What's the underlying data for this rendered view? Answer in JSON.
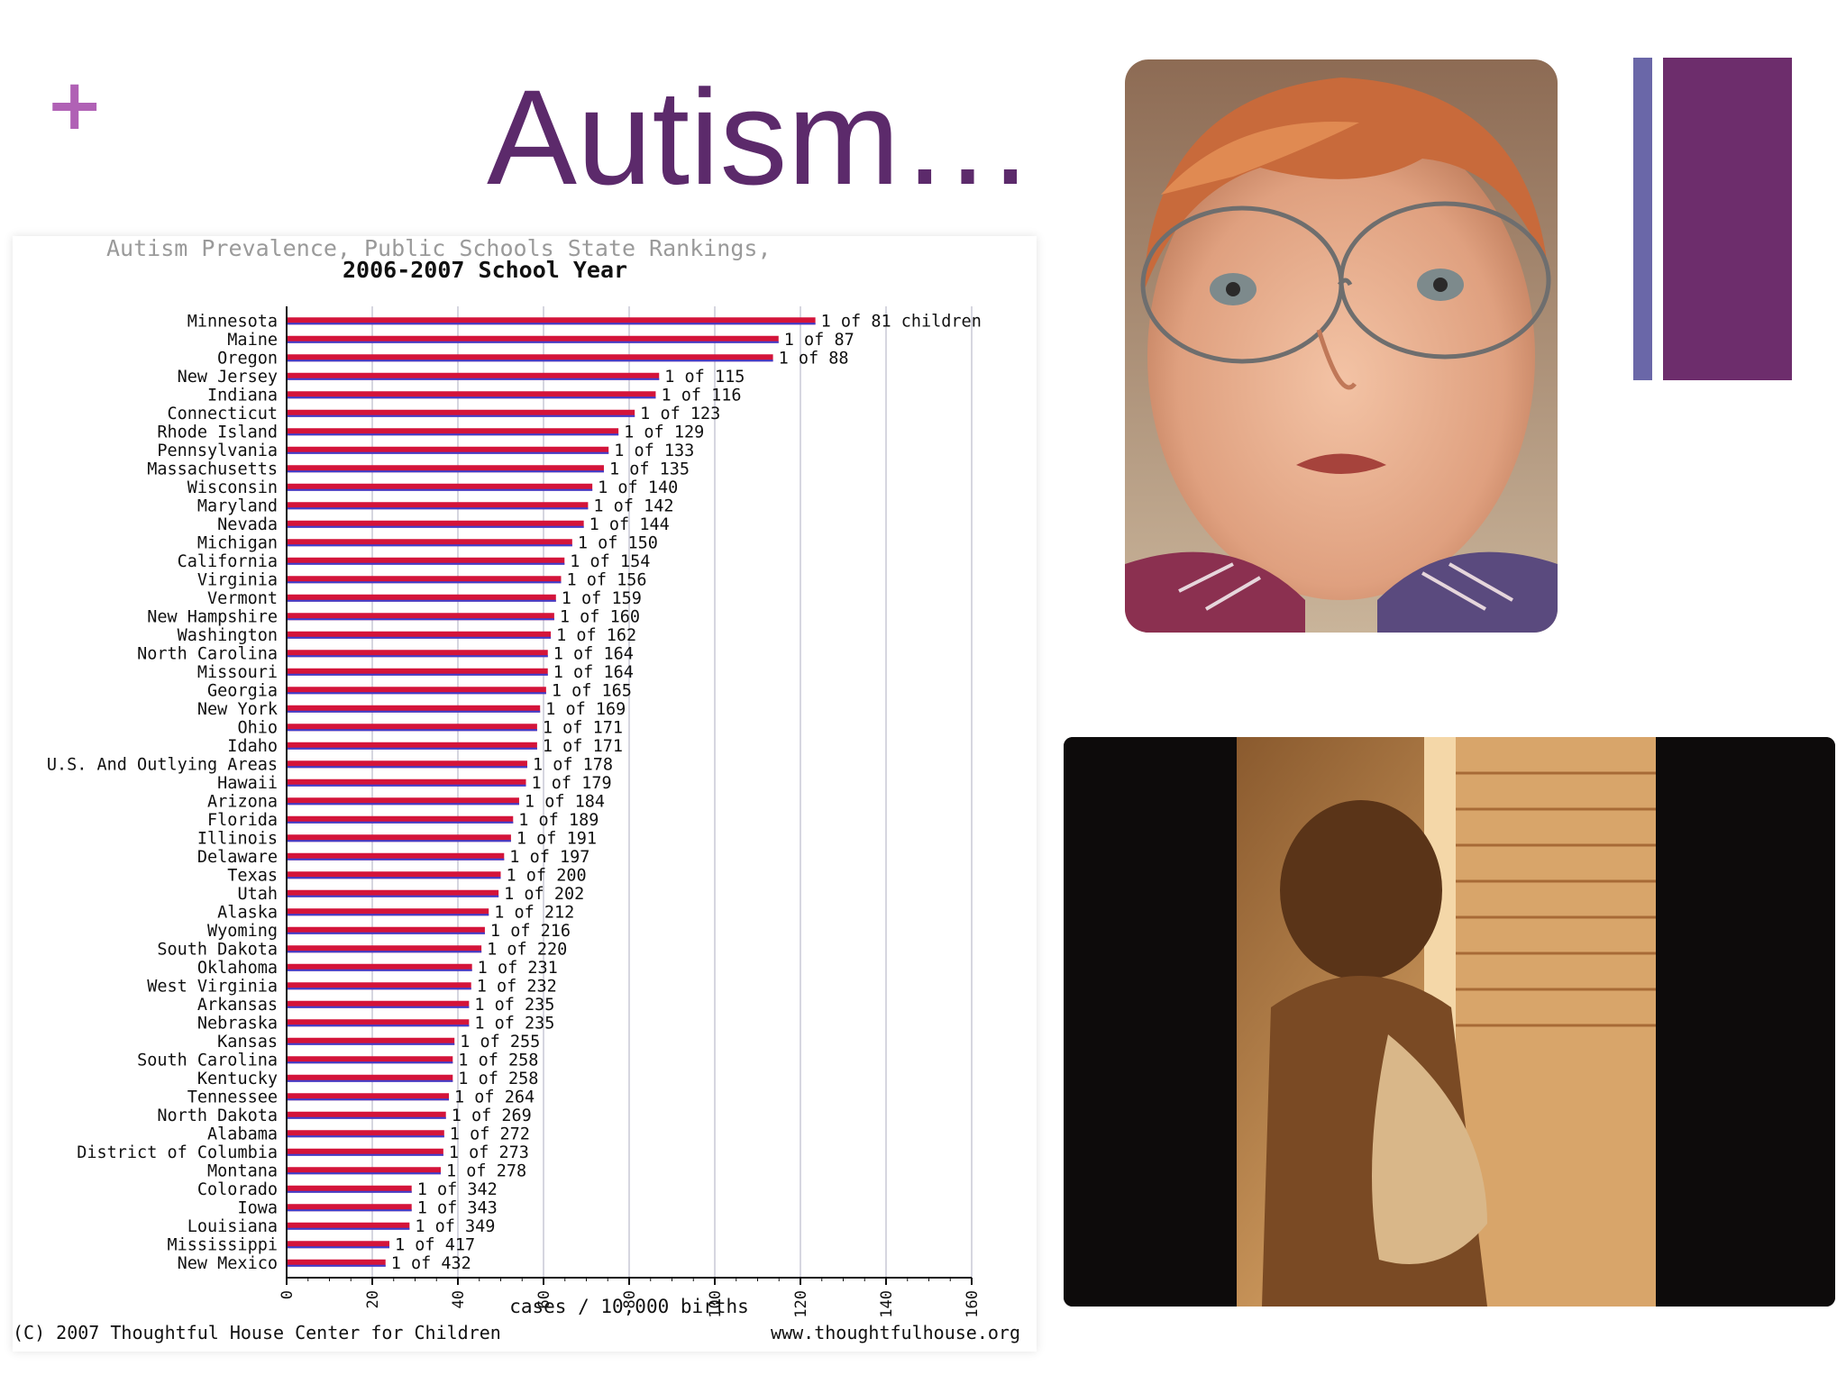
{
  "slide": {
    "plus": "+",
    "title": "Autism…"
  },
  "colors": {
    "bar_fill": "#d4143a",
    "bar_stripe": "#3a3fd0",
    "title": "#5c2a6b",
    "accent_light": "#6a67a8",
    "accent_dark": "#6d2d6c"
  },
  "chart_data": {
    "type": "bar",
    "orientation": "horizontal",
    "title": "Autism Prevalence, Public Schools State Rankings,",
    "subtitle": "2006-2007 School Year",
    "xlabel": "cases / 10,000 births",
    "xlim": [
      0,
      160
    ],
    "xticks": [
      "0",
      "20",
      "40",
      "60",
      "80",
      "100",
      "120",
      "140",
      "160"
    ],
    "grid": true,
    "footer_left": "(C) 2007 Thoughtful House Center for Children",
    "footer_right": "www.thoughtfulhouse.org",
    "categories": [
      "Minnesota",
      "Maine",
      "Oregon",
      "New Jersey",
      "Indiana",
      "Connecticut",
      "Rhode Island",
      "Pennsylvania",
      "Massachusetts",
      "Wisconsin",
      "Maryland",
      "Nevada",
      "Michigan",
      "California",
      "Virginia",
      "Vermont",
      "New Hampshire",
      "Washington",
      "North Carolina",
      "Missouri",
      "Georgia",
      "New York",
      "Ohio",
      "Idaho",
      "U.S. And Outlying Areas",
      "Hawaii",
      "Arizona",
      "Florida",
      "Illinois",
      "Delaware",
      "Texas",
      "Utah",
      "Alaska",
      "Wyoming",
      "South Dakota",
      "Oklahoma",
      "West Virginia",
      "Arkansas",
      "Nebraska",
      "Kansas",
      "South Carolina",
      "Kentucky",
      "Tennessee",
      "North Dakota",
      "Alabama",
      "District of Columbia",
      "Montana",
      "Colorado",
      "Iowa",
      "Louisiana",
      "Mississippi",
      "New Mexico"
    ],
    "values": [
      123.5,
      114.9,
      113.6,
      87.0,
      86.2,
      81.3,
      77.5,
      75.2,
      74.1,
      71.4,
      70.4,
      69.4,
      66.7,
      64.9,
      64.1,
      62.9,
      62.5,
      61.7,
      61.0,
      61.0,
      60.6,
      59.2,
      58.5,
      58.5,
      56.2,
      55.9,
      54.3,
      52.9,
      52.4,
      50.8,
      50.0,
      49.5,
      47.2,
      46.3,
      45.5,
      43.3,
      43.1,
      42.6,
      42.6,
      39.2,
      38.8,
      38.8,
      37.9,
      37.2,
      36.8,
      36.6,
      36.0,
      29.2,
      29.2,
      28.7,
      24.0,
      23.1
    ],
    "data_labels": [
      "1 of 81 children",
      "1 of 87",
      "1 of 88",
      "1 of 115",
      "1 of 116",
      "1 of 123",
      "1 of 129",
      "1 of 133",
      "1 of 135",
      "1 of 140",
      "1 of 142",
      "1 of 144",
      "1 of 150",
      "1 of 154",
      "1 of 156",
      "1 of 159",
      "1 of 160",
      "1 of 162",
      "1 of 164",
      "1 of 164",
      "1 of 165",
      "1 of 169",
      "1 of 171",
      "1 of 171",
      "1 of 178",
      "1 of 179",
      "1 of 184",
      "1 of 189",
      "1 of 191",
      "1 of 197",
      "1 of 200",
      "1 of 202",
      "1 of 212",
      "1 of 216",
      "1 of 220",
      "1 of 231",
      "1 of 232",
      "1 of 235",
      "1 of 235",
      "1 of 255",
      "1 of 258",
      "1 of 258",
      "1 of 264",
      "1 of 269",
      "1 of 272",
      "1 of 273",
      "1 of 278",
      "1 of 342",
      "1 of 343",
      "1 of 349",
      "1 of 417",
      "1 of 432"
    ]
  }
}
